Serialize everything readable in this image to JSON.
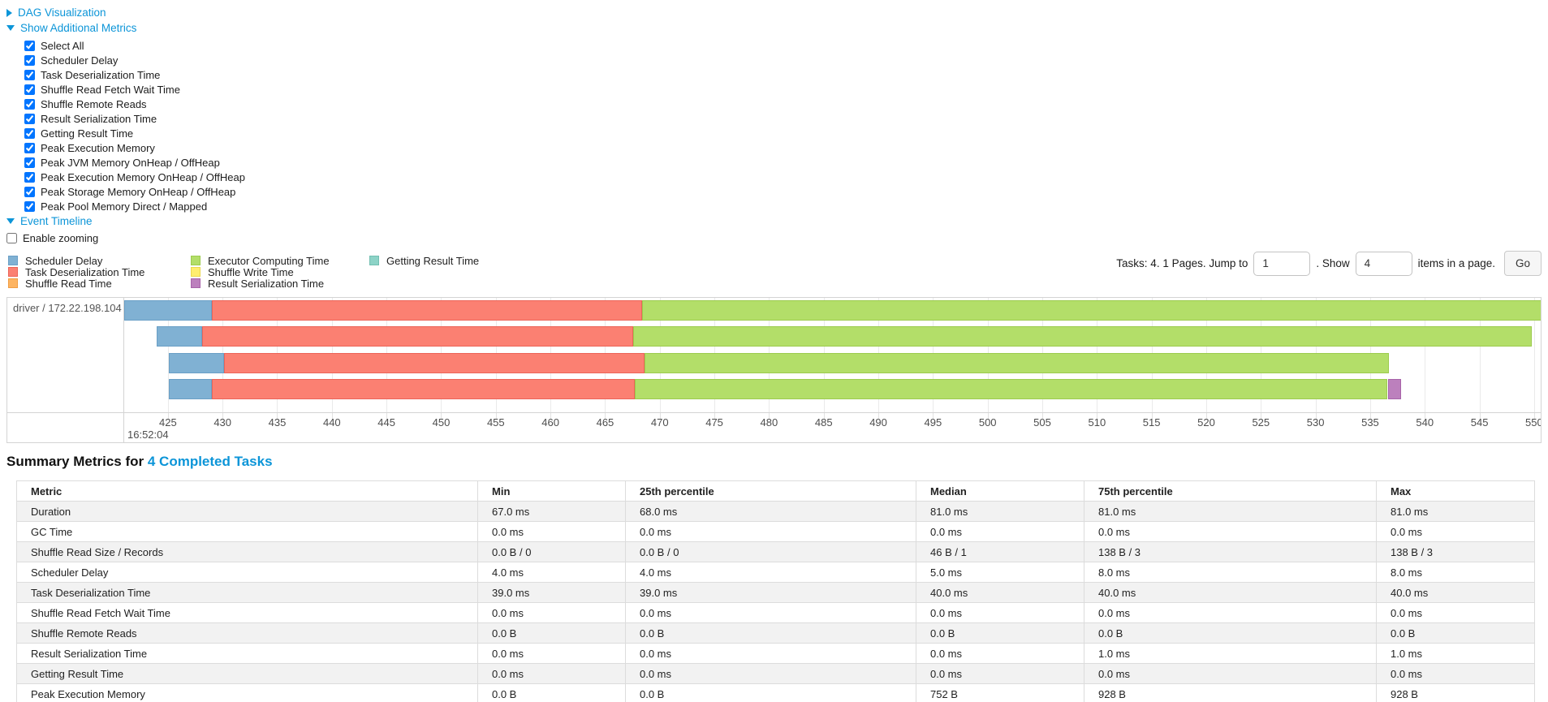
{
  "toggles": {
    "dag_label": "DAG Visualization",
    "metrics_label": "Show Additional Metrics",
    "timeline_label": "Event Timeline",
    "enable_zooming_label": "Enable zooming"
  },
  "additional_metrics": {
    "items": [
      {
        "label": "Select All",
        "checked": true
      },
      {
        "label": "Scheduler Delay",
        "checked": true
      },
      {
        "label": "Task Deserialization Time",
        "checked": true
      },
      {
        "label": "Shuffle Read Fetch Wait Time",
        "checked": true
      },
      {
        "label": "Shuffle Remote Reads",
        "checked": true
      },
      {
        "label": "Result Serialization Time",
        "checked": true
      },
      {
        "label": "Getting Result Time",
        "checked": true
      },
      {
        "label": "Peak Execution Memory",
        "checked": true
      },
      {
        "label": "Peak JVM Memory OnHeap / OffHeap",
        "checked": true
      },
      {
        "label": "Peak Execution Memory OnHeap / OffHeap",
        "checked": true
      },
      {
        "label": "Peak Storage Memory OnHeap / OffHeap",
        "checked": true
      },
      {
        "label": "Peak Pool Memory Direct / Mapped",
        "checked": true
      }
    ]
  },
  "enable_zooming_checked": false,
  "pagination": {
    "tasks_text": "Tasks: 4. 1 Pages. Jump to",
    "jump_value": "1",
    "show_text": ". Show",
    "show_value": "4",
    "items_text": "items in a page.",
    "go_label": "Go"
  },
  "legend": {
    "columns": [
      [
        {
          "key": "scheduler-delay",
          "label": "Scheduler Delay"
        },
        {
          "key": "task-deserialization",
          "label": "Task Deserialization Time"
        },
        {
          "key": "shuffle-read",
          "label": "Shuffle Read Time"
        }
      ],
      [
        {
          "key": "executor-computing",
          "label": "Executor Computing Time"
        },
        {
          "key": "shuffle-write",
          "label": "Shuffle Write Time"
        },
        {
          "key": "result-serialization",
          "label": "Result Serialization Time"
        }
      ],
      [
        {
          "key": "getting-result",
          "label": "Getting Result Time"
        }
      ]
    ]
  },
  "chart_data": {
    "type": "timeline",
    "title": "Event Timeline",
    "group_label": "driver / 172.22.198.104",
    "x_axis": {
      "domain_start": 421,
      "domain_end": 550.6,
      "tick_start": 425,
      "tick_end": 550,
      "tick_interval": 5,
      "unit": "ms",
      "anchor_time_label": "16:52:04"
    },
    "series_colors": {
      "scheduler-delay": {
        "fill": "#80B1D3",
        "border": "#6A9FC6"
      },
      "task-deserialization": {
        "fill": "#FB8072",
        "border": "#EC6458"
      },
      "shuffle-read": {
        "fill": "#FDB462",
        "border": "#F09D43"
      },
      "executor-computing": {
        "fill": "#B3DE69",
        "border": "#9CCB4E"
      },
      "shuffle-write": {
        "fill": "#FFED6F",
        "border": "#EBD84F"
      },
      "result-serialization": {
        "fill": "#BC80BD",
        "border": "#A763A9"
      },
      "getting-result": {
        "fill": "#8DD3C7",
        "border": "#72BFB1"
      }
    },
    "tasks": [
      {
        "name": "task-0",
        "segments": [
          [
            "scheduler-delay",
            421.0,
            429.0
          ],
          [
            "task-deserialization",
            429.0,
            468.4
          ],
          [
            "executor-computing",
            468.4,
            550.7
          ]
        ]
      },
      {
        "name": "task-1",
        "segments": [
          [
            "scheduler-delay",
            424.0,
            428.1
          ],
          [
            "task-deserialization",
            428.1,
            467.6
          ],
          [
            "executor-computing",
            467.6,
            549.8
          ]
        ]
      },
      {
        "name": "task-2",
        "segments": [
          [
            "scheduler-delay",
            425.1,
            430.1
          ],
          [
            "task-deserialization",
            430.1,
            468.6
          ],
          [
            "executor-computing",
            468.6,
            536.7
          ]
        ]
      },
      {
        "name": "task-3",
        "segments": [
          [
            "scheduler-delay",
            425.1,
            429.0
          ],
          [
            "task-deserialization",
            429.0,
            467.7
          ],
          [
            "executor-computing",
            467.7,
            536.6
          ],
          [
            "result-serialization",
            536.6,
            537.8
          ]
        ]
      }
    ]
  },
  "summary": {
    "heading_prefix": "Summary Metrics for",
    "heading_link": "4 Completed Tasks",
    "table": {
      "headers": [
        "Metric",
        "Min",
        "25th percentile",
        "Median",
        "75th percentile",
        "Max"
      ],
      "rows": [
        {
          "metric": "Duration",
          "values": [
            "67.0 ms",
            "68.0 ms",
            "81.0 ms",
            "81.0 ms",
            "81.0 ms"
          ]
        },
        {
          "metric": "GC Time",
          "values": [
            "0.0 ms",
            "0.0 ms",
            "0.0 ms",
            "0.0 ms",
            "0.0 ms"
          ]
        },
        {
          "metric": "Shuffle Read Size / Records",
          "values": [
            "0.0 B / 0",
            "0.0 B / 0",
            "46 B / 1",
            "138 B / 3",
            "138 B / 3"
          ]
        },
        {
          "metric": "Scheduler Delay",
          "values": [
            "4.0 ms",
            "4.0 ms",
            "5.0 ms",
            "8.0 ms",
            "8.0 ms"
          ]
        },
        {
          "metric": "Task Deserialization Time",
          "values": [
            "39.0 ms",
            "39.0 ms",
            "40.0 ms",
            "40.0 ms",
            "40.0 ms"
          ]
        },
        {
          "metric": "Shuffle Read Fetch Wait Time",
          "values": [
            "0.0 ms",
            "0.0 ms",
            "0.0 ms",
            "0.0 ms",
            "0.0 ms"
          ]
        },
        {
          "metric": "Shuffle Remote Reads",
          "values": [
            "0.0 B",
            "0.0 B",
            "0.0 B",
            "0.0 B",
            "0.0 B"
          ]
        },
        {
          "metric": "Result Serialization Time",
          "values": [
            "0.0 ms",
            "0.0 ms",
            "0.0 ms",
            "1.0 ms",
            "1.0 ms"
          ]
        },
        {
          "metric": "Getting Result Time",
          "values": [
            "0.0 ms",
            "0.0 ms",
            "0.0 ms",
            "0.0 ms",
            "0.0 ms"
          ]
        },
        {
          "metric": "Peak Execution Memory",
          "values": [
            "0.0 B",
            "0.0 B",
            "752 B",
            "928 B",
            "928 B"
          ]
        }
      ]
    }
  }
}
